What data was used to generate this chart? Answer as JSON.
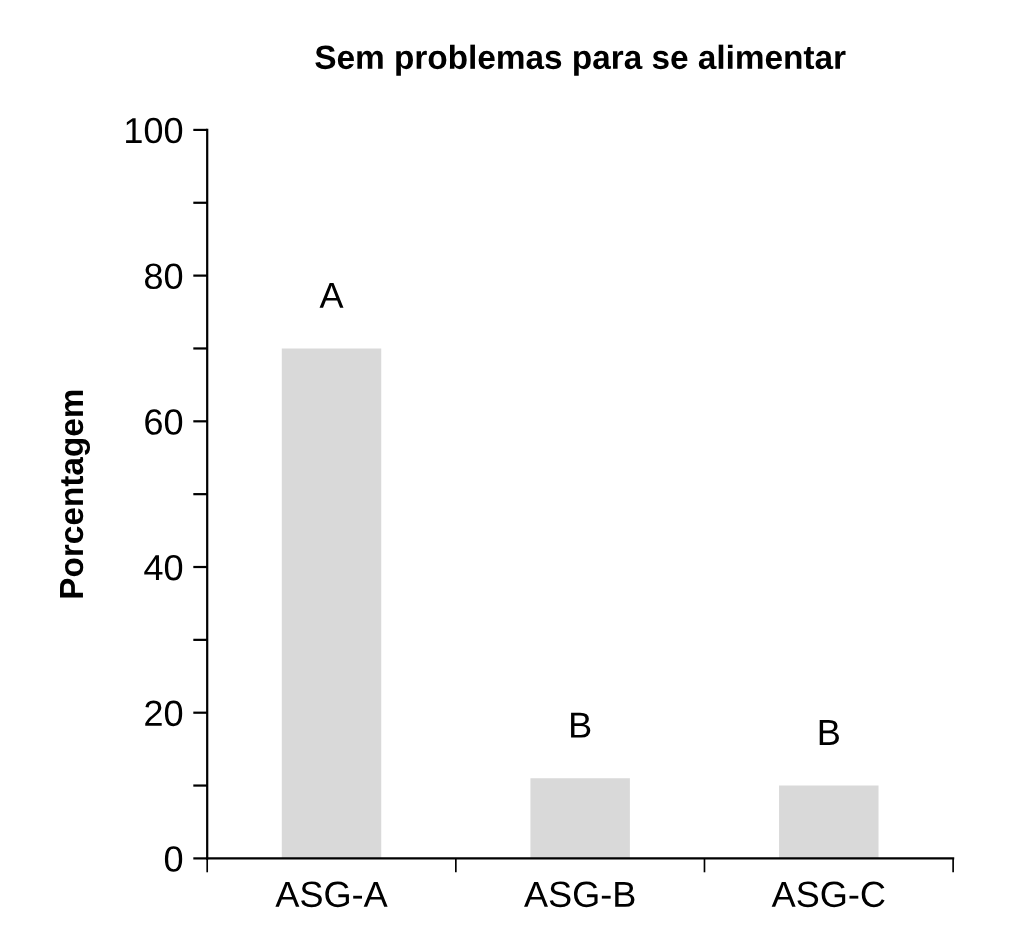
{
  "chart_data": {
    "type": "bar",
    "title": "Sem problemas para se alimentar",
    "ylabel": "Porcentagem",
    "categories": [
      "ASG-A",
      "ASG-B",
      "ASG-C"
    ],
    "values": [
      70,
      11,
      10
    ],
    "color": "#d9d9d9",
    "ylim": [
      0,
      100
    ],
    "yticks": [
      0,
      {
        "value": 10,
        "label": null
      },
      20,
      {
        "value": 30,
        "label": null
      },
      40,
      {
        "value": 50,
        "label": null
      },
      60,
      {
        "value": 70,
        "label": null
      },
      80,
      {
        "value": 90,
        "label": null
      },
      100
    ],
    "annotations": [
      {
        "text": "A",
        "x": "ASG-A",
        "y": 70
      },
      {
        "text": "B",
        "x": "ASG-B",
        "y": 11
      },
      {
        "text": "B",
        "x": "ASG-C",
        "y": 10
      }
    ]
  }
}
